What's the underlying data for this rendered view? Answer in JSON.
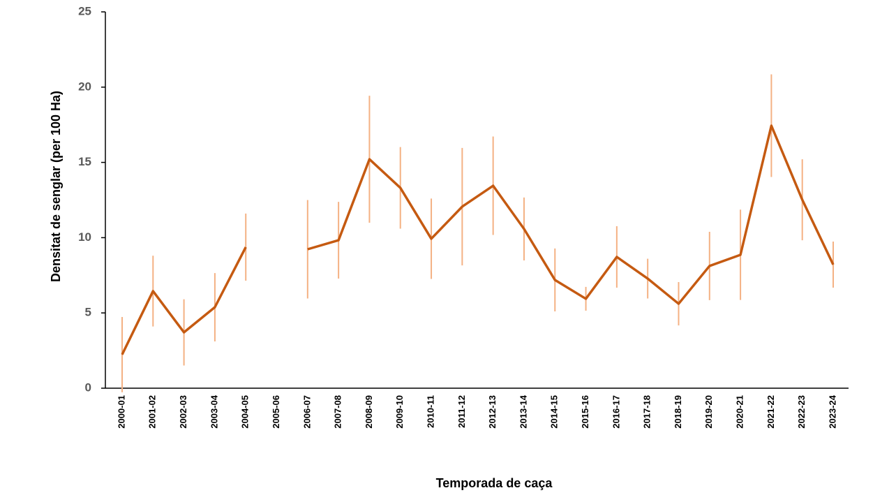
{
  "chart_data": {
    "type": "line",
    "x_label": "Temporada de caça",
    "y_label": "Densitat de senglar (per 100 Ha)",
    "categories": [
      "2000-01",
      "2001-02",
      "2002-03",
      "2003-04",
      "2004-05",
      "2005-06",
      "2006-07",
      "2007-08",
      "2008-09",
      "2009-10",
      "2010-11",
      "2011-12",
      "2012-13",
      "2013-14",
      "2014-15",
      "2015-16",
      "2016-17",
      "2017-18",
      "2018-19",
      "2019-20",
      "2020-21",
      "2021-22",
      "2022-23",
      "2023-24"
    ],
    "series": [
      {
        "color": "#c55a11",
        "error_color": "#f4b183",
        "values": [
          2.23,
          6.45,
          3.71,
          5.38,
          9.37,
          null,
          9.23,
          9.83,
          15.21,
          13.31,
          9.93,
          12.06,
          13.45,
          10.58,
          7.19,
          5.94,
          8.72,
          7.28,
          5.61,
          8.12,
          8.86,
          17.44,
          12.52,
          8.21
        ],
        "errors": [
          2.5,
          2.35,
          2.2,
          2.27,
          2.23,
          null,
          3.27,
          2.55,
          4.22,
          2.71,
          2.67,
          3.9,
          3.27,
          2.09,
          2.09,
          0.79,
          2.04,
          1.32,
          1.44,
          2.27,
          3.0,
          3.41,
          2.69,
          1.53
        ]
      }
    ],
    "ylim": [
      0,
      25
    ],
    "yticks": [
      0,
      5,
      10,
      15,
      20,
      25
    ],
    "grid": false
  }
}
